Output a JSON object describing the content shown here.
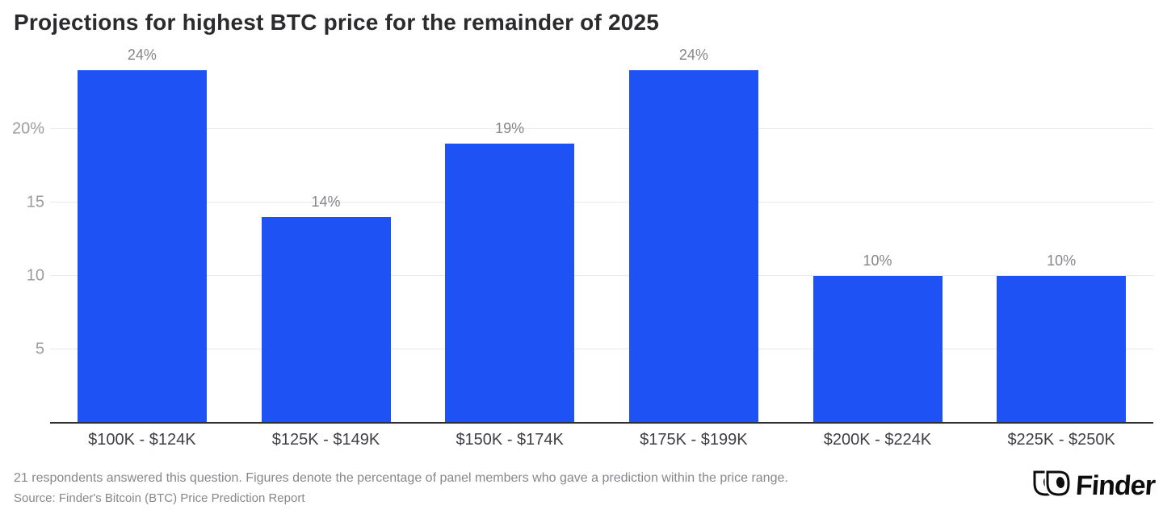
{
  "title": "Projections for highest BTC price for the remainder of 2025",
  "chart_data": {
    "type": "bar",
    "title": "Projections for highest BTC price for the remainder of 2025",
    "categories": [
      "$100K - $124K",
      "$125K - $149K",
      "$150K - $174K",
      "$175K - $199K",
      "$200K - $224K",
      "$225K - $250K"
    ],
    "values": [
      24,
      14,
      19,
      24,
      10,
      10
    ],
    "value_labels": [
      "24%",
      "14%",
      "19%",
      "24%",
      "10%",
      "10%"
    ],
    "xlabel": "",
    "ylabel": "",
    "ylim": [
      0,
      25.5
    ],
    "yticks": [
      {
        "value": 5,
        "label": "5"
      },
      {
        "value": 10,
        "label": "10"
      },
      {
        "value": 15,
        "label": "15"
      },
      {
        "value": 20,
        "label": "20%"
      }
    ],
    "grid": true,
    "legend_position": "none",
    "bar_color": "#1f52f5",
    "gridline_color": "#e9e9ec",
    "axis_line_color": "#2e2e31",
    "value_label_color": "#86868c",
    "ytick_color": "#9b9ba1",
    "xtick_color": "#3f3f46"
  },
  "footer": {
    "note": "21 respondents answered this question. Figures denote the percentage of panel members who gave a prediction within the price range.",
    "source": "Source: Finder's Bitcoin (BTC) Price Prediction Report"
  },
  "logo": {
    "text": "Finder",
    "color": "#0d0d0d"
  }
}
